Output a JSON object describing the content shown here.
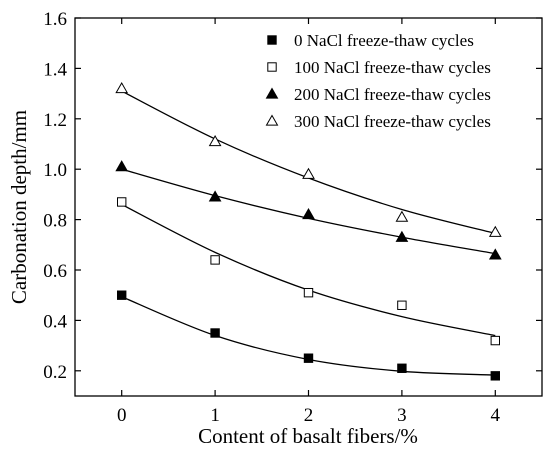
{
  "chart_data": {
    "type": "scatter",
    "xlabel": "Content of basalt fibers/%",
    "ylabel": "Carbonation depth/mm",
    "xlim": [
      -0.5,
      4.5
    ],
    "ylim": [
      0.1,
      1.6
    ],
    "x_ticks": [
      0,
      1,
      2,
      3,
      4
    ],
    "y_ticks": [
      0.2,
      0.4,
      0.6,
      0.8,
      1.0,
      1.2,
      1.4,
      1.6
    ],
    "x_tick_labels": [
      "0",
      "1",
      "2",
      "3",
      "4"
    ],
    "y_tick_labels": [
      "0.2",
      "0.4",
      "0.6",
      "0.8",
      "1.0",
      "1.2",
      "1.4",
      "1.6"
    ],
    "grid": false,
    "legend_position": "top-right",
    "trend_lines": true,
    "series": [
      {
        "name": "0   NaCl freeze-thaw cycles",
        "marker": "filled-square",
        "x": [
          0,
          1,
          2,
          3,
          4
        ],
        "values": [
          0.5,
          0.35,
          0.25,
          0.21,
          0.18
        ],
        "fit": [
          0.494,
          0.34,
          0.245,
          0.198,
          0.183
        ]
      },
      {
        "name": "100 NaCl freeze-thaw cycles",
        "marker": "open-square",
        "x": [
          0,
          1,
          2,
          3,
          4
        ],
        "values": [
          0.87,
          0.64,
          0.51,
          0.46,
          0.32
        ],
        "fit": [
          0.86,
          0.67,
          0.52,
          0.415,
          0.34
        ]
      },
      {
        "name": "200 NaCl freeze-thaw cycles",
        "marker": "filled-triangle",
        "x": [
          0,
          1,
          2,
          3,
          4
        ],
        "values": [
          1.01,
          0.89,
          0.82,
          0.73,
          0.66
        ],
        "fit": [
          1.0,
          0.895,
          0.805,
          0.73,
          0.665
        ]
      },
      {
        "name": "300 NaCl freeze-thaw cycles",
        "marker": "open-triangle",
        "x": [
          0,
          1,
          2,
          3,
          4
        ],
        "values": [
          1.32,
          1.11,
          0.98,
          0.81,
          0.75
        ],
        "fit": [
          1.31,
          1.12,
          0.965,
          0.84,
          0.745
        ]
      }
    ]
  }
}
